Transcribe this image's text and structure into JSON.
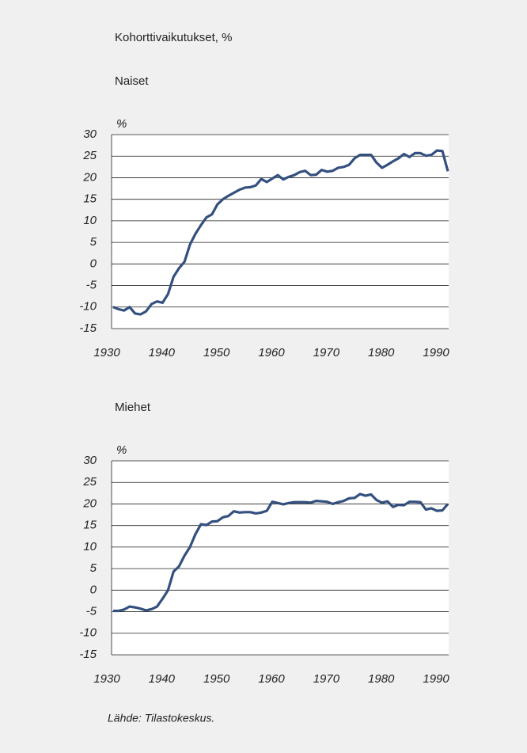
{
  "title": "Kohorttivaikutukset, %",
  "source": "Lähde: Tilastokeskus.",
  "chart_data": [
    {
      "type": "line",
      "title": "Naiset",
      "y_label": "%",
      "color": "#34507f",
      "x": [
        1930,
        1931,
        1932,
        1933,
        1934,
        1935,
        1936,
        1937,
        1938,
        1939,
        1940,
        1941,
        1942,
        1943,
        1944,
        1945,
        1946,
        1947,
        1948,
        1949,
        1950,
        1951,
        1952,
        1953,
        1954,
        1955,
        1956,
        1957,
        1958,
        1959,
        1960,
        1961,
        1962,
        1963,
        1964,
        1965,
        1966,
        1967,
        1968,
        1969,
        1970,
        1971,
        1972,
        1973,
        1974,
        1975,
        1976,
        1977,
        1978,
        1979,
        1980,
        1981,
        1982,
        1983,
        1984,
        1985,
        1986,
        1987,
        1988,
        1989,
        1990,
        1991
      ],
      "values": [
        -10,
        -10.5,
        -10.8,
        -10,
        -11.5,
        -11.7,
        -11,
        -9.3,
        -8.7,
        -9,
        -7,
        -3,
        -1,
        0.5,
        4.5,
        7,
        9,
        10.8,
        11.5,
        13.8,
        15,
        15.8,
        16.5,
        17.2,
        17.7,
        17.8,
        18.2,
        19.7,
        19,
        19.8,
        20.6,
        19.6,
        20.2,
        20.6,
        21.3,
        21.6,
        20.6,
        20.7,
        21.8,
        21.4,
        21.6,
        22.3,
        22.5,
        23,
        24.5,
        25.3,
        25.3,
        25.3,
        23.5,
        22.3,
        23,
        23.8,
        24.5,
        25.5,
        24.8,
        25.7,
        25.7,
        25.1,
        25.3,
        26.3,
        26.2,
        21.5
      ],
      "xlim": [
        1930,
        1991
      ],
      "xticks": [
        1930,
        1940,
        1950,
        1960,
        1970,
        1980,
        1990
      ],
      "ylim": [
        -15,
        30
      ],
      "yticks": [
        -15,
        -10,
        -5,
        0,
        5,
        10,
        15,
        20,
        25,
        30
      ],
      "grid": true
    },
    {
      "type": "line",
      "title": "Miehet",
      "y_label": "%",
      "color": "#34507f",
      "x": [
        1930,
        1931,
        1932,
        1933,
        1934,
        1935,
        1936,
        1937,
        1938,
        1939,
        1940,
        1941,
        1942,
        1943,
        1944,
        1945,
        1946,
        1947,
        1948,
        1949,
        1950,
        1951,
        1952,
        1953,
        1954,
        1955,
        1956,
        1957,
        1958,
        1959,
        1960,
        1961,
        1962,
        1963,
        1964,
        1965,
        1966,
        1967,
        1968,
        1969,
        1970,
        1971,
        1972,
        1973,
        1974,
        1975,
        1976,
        1977,
        1978,
        1979,
        1980,
        1981,
        1982,
        1983,
        1984,
        1985,
        1986,
        1987,
        1988,
        1989,
        1990,
        1991
      ],
      "values": [
        -4.8,
        -4.8,
        -4.5,
        -3.8,
        -4,
        -4.3,
        -4.7,
        -4.4,
        -3.8,
        -2,
        0,
        4.3,
        5.5,
        8,
        10,
        13,
        15.3,
        15.1,
        15.9,
        16,
        16.9,
        17.2,
        18.3,
        18,
        18.1,
        18.1,
        17.8,
        18,
        18.4,
        20.5,
        20.2,
        19.9,
        20.2,
        20.4,
        20.4,
        20.4,
        20.3,
        20.7,
        20.6,
        20.5,
        20,
        20.4,
        20.7,
        21.3,
        21.4,
        22.3,
        21.9,
        22.2,
        20.9,
        20.3,
        20.6,
        19.3,
        19.8,
        19.7,
        20.5,
        20.5,
        20.4,
        18.7,
        19,
        18.4,
        18.5,
        20
      ],
      "xlim": [
        1930,
        1991
      ],
      "xticks": [
        1930,
        1940,
        1950,
        1960,
        1970,
        1980,
        1990
      ],
      "ylim": [
        -15,
        30
      ],
      "yticks": [
        -15,
        -10,
        -5,
        0,
        5,
        10,
        15,
        20,
        25,
        30
      ],
      "grid": true
    }
  ]
}
